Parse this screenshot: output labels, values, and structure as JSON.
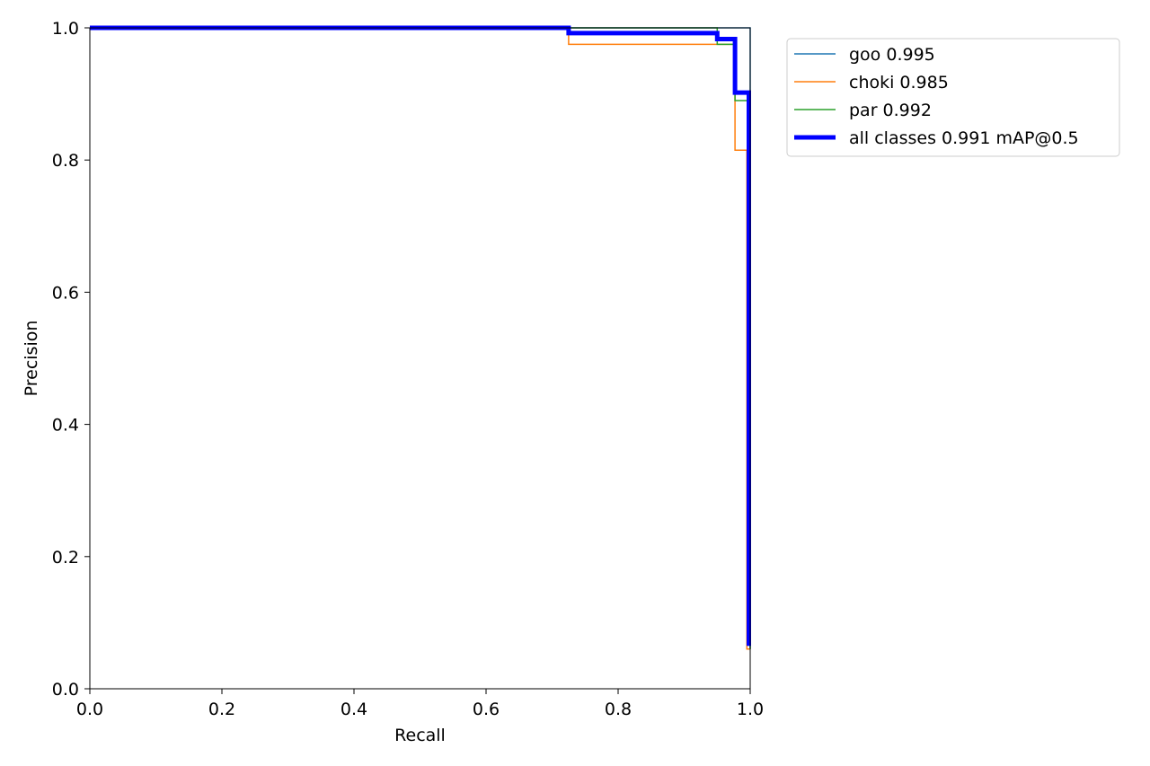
{
  "chart_data": {
    "type": "line",
    "title": "",
    "xlabel": "Recall",
    "ylabel": "Precision",
    "xlim": [
      0,
      1
    ],
    "ylim": [
      0,
      1
    ],
    "xticks": [
      "0.0",
      "0.2",
      "0.4",
      "0.6",
      "0.8",
      "1.0"
    ],
    "yticks": [
      "0.0",
      "0.2",
      "0.4",
      "0.6",
      "0.8",
      "1.0"
    ],
    "grid": false,
    "legend_position": "outside-top-right",
    "series": [
      {
        "name": "goo 0.995",
        "color": "#1f77b4",
        "x": [
          0,
          1.0,
          1.0
        ],
        "y": [
          1.0,
          1.0,
          0.06
        ]
      },
      {
        "name": "choki 0.985",
        "color": "#ff7f0e",
        "x": [
          0,
          0.725,
          0.725,
          0.977,
          0.977,
          0.995,
          0.995,
          1.0,
          1.0
        ],
        "y": [
          1.0,
          1.0,
          0.975,
          0.975,
          0.815,
          0.815,
          0.06,
          0.06,
          0.06
        ]
      },
      {
        "name": "par 0.992",
        "color": "#2ca02c",
        "x": [
          0,
          0.95,
          0.95,
          0.977,
          0.977,
          1.0,
          1.0
        ],
        "y": [
          1.0,
          1.0,
          0.975,
          0.975,
          0.89,
          0.89,
          0.06
        ]
      },
      {
        "name": "all classes 0.991 mAP@0.5",
        "color": "#0000ff",
        "x": [
          0,
          0.725,
          0.725,
          0.95,
          0.95,
          0.977,
          0.977,
          0.998,
          0.998
        ],
        "y": [
          1.0,
          1.0,
          0.992,
          0.992,
          0.983,
          0.983,
          0.902,
          0.902,
          0.065
        ]
      }
    ]
  }
}
